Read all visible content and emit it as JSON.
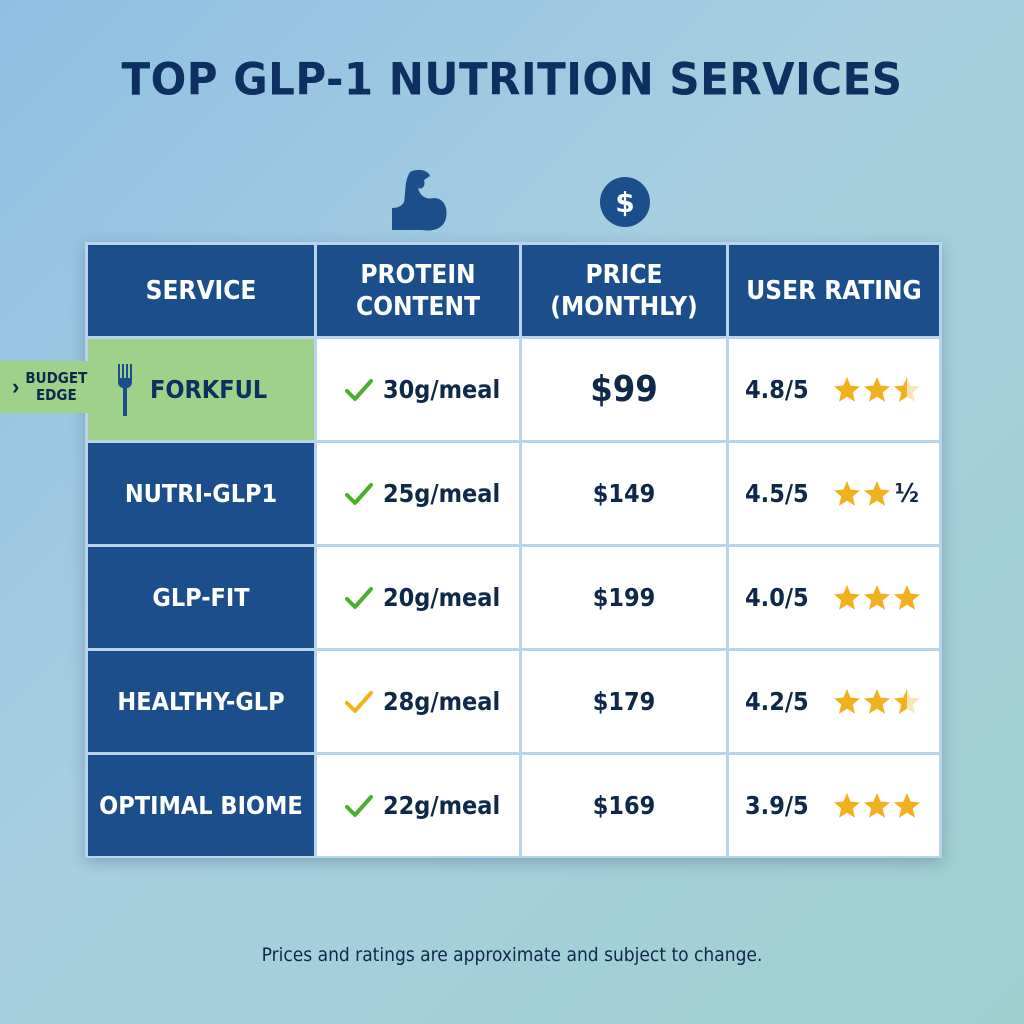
{
  "title": "TOP GLP-1 NUTRITION SERVICES",
  "icons": {
    "column1": "flexed-arm-icon",
    "column2": "dollar-coin-icon"
  },
  "colors": {
    "header": "#1c4e8c",
    "highlight": "#9fd18a",
    "text": "#0d3060",
    "star": "#f2b01e",
    "check_green": "#4caf2a",
    "check_yellow": "#f0b21a"
  },
  "badge": {
    "label": "BUDGET\nEDGE",
    "arrow": "›"
  },
  "table": {
    "headers": [
      "SERVICE",
      "PROTEIN\nCONTENT",
      "PRICE\n(MONTHLY)",
      "USER RATING"
    ],
    "rows": [
      {
        "service": "FORKFUL",
        "protein": "30g/meal",
        "check": "green",
        "price": "$99",
        "rating": "4.8/5",
        "stars": 2.5,
        "half_glyph": "",
        "highlighted": true
      },
      {
        "service": "NUTRI-GLP1",
        "protein": "25g/meal",
        "check": "green",
        "price": "$149",
        "rating": "4.5/5",
        "stars": 2,
        "half_glyph": "½",
        "highlighted": false
      },
      {
        "service": "GLP-FIT",
        "protein": "20g/meal",
        "check": "green",
        "price": "$199",
        "rating": "4.0/5",
        "stars": 3,
        "half_glyph": "",
        "highlighted": false
      },
      {
        "service": "HEALTHY-GLP",
        "protein": "28g/meal",
        "check": "yellow",
        "price": "$179",
        "rating": "4.2/5",
        "stars": 2.5,
        "half_glyph": "",
        "highlighted": false
      },
      {
        "service": "OPTIMAL BIOME",
        "protein": "22g/meal",
        "check": "green",
        "price": "$169",
        "rating": "3.9/5",
        "stars": 3,
        "half_glyph": "",
        "highlighted": false
      }
    ]
  },
  "footnote": "Prices and ratings are approximate and subject to change."
}
